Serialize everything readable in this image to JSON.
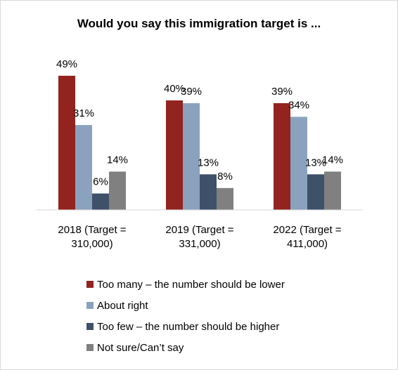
{
  "chart_data": {
    "type": "bar",
    "title": "Would you say this immigration target is ...",
    "categories": [
      [
        "2018 (Target =",
        "310,000)"
      ],
      [
        "2019 (Target =",
        "331,000)"
      ],
      [
        "2022 (Target =",
        "411,000)"
      ]
    ],
    "series": [
      {
        "name": "Too many – the number should be lower",
        "color": "#93231f",
        "values": [
          49,
          40,
          39
        ],
        "labels": [
          "49%",
          "40%",
          "39%"
        ]
      },
      {
        "name": "About right",
        "color": "#8aa2bd",
        "values": [
          31,
          39,
          34
        ],
        "labels": [
          "31%",
          "39%",
          "34%"
        ]
      },
      {
        "name": "Too few – the number should be higher",
        "color": "#3f5069",
        "values": [
          6,
          13,
          13
        ],
        "labels": [
          "6%",
          "13%",
          "13%"
        ]
      },
      {
        "name": "Not sure/Can’t say",
        "color": "#808080",
        "values": [
          14,
          8,
          14
        ],
        "labels": [
          "14%",
          "8%",
          "14%"
        ]
      }
    ],
    "ylim": [
      0,
      50
    ],
    "grid": false,
    "legend_position": "bottom"
  }
}
